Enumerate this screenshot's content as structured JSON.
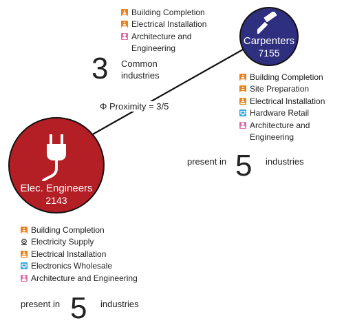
{
  "colors": {
    "carpenters": "#2e2f7f",
    "elec_engineers": "#b31f25",
    "building": "#e8821e",
    "electricity": "#6f8596",
    "hardware": "#2ea3dc",
    "architecture": "#de6fa6"
  },
  "carpenters": {
    "name": "Carpenters",
    "code": "7155",
    "icon": "hammer-icon",
    "present_prefix": "present in",
    "present_count": "5",
    "present_suffix": "industries",
    "industries": [
      {
        "label": "Building Completion",
        "icon": "construction-icon"
      },
      {
        "label": "Site Preparation",
        "icon": "construction-icon"
      },
      {
        "label": "Electrical Installation",
        "icon": "construction-icon"
      },
      {
        "label": "Hardware Retail",
        "icon": "retail-icon"
      },
      {
        "label": "Architecture and Engineering",
        "icon": "professional-services-icon"
      }
    ]
  },
  "elec_engineers": {
    "name": "Elec. Engineers",
    "code": "2143",
    "icon": "plug-icon",
    "present_prefix": "present in",
    "present_count": "5",
    "present_suffix": "industries",
    "industries": [
      {
        "label": "Building Completion",
        "icon": "construction-icon"
      },
      {
        "label": "Electricity Supply",
        "icon": "utilities-icon"
      },
      {
        "label": "Electrical Installation",
        "icon": "construction-icon"
      },
      {
        "label": "Electronics Wholesale",
        "icon": "retail-icon"
      },
      {
        "label": "Architecture and Engineering",
        "icon": "professional-services-icon"
      }
    ]
  },
  "common": {
    "count": "3",
    "label": "Common industries",
    "industries": [
      {
        "label": "Building Completion",
        "icon": "construction-icon"
      },
      {
        "label": "Electrical Installation",
        "icon": "construction-icon"
      },
      {
        "label": "Architecture and Engineering",
        "icon": "professional-services-icon"
      }
    ]
  },
  "proximity": {
    "label": "Φ Proximity = 3/5"
  }
}
